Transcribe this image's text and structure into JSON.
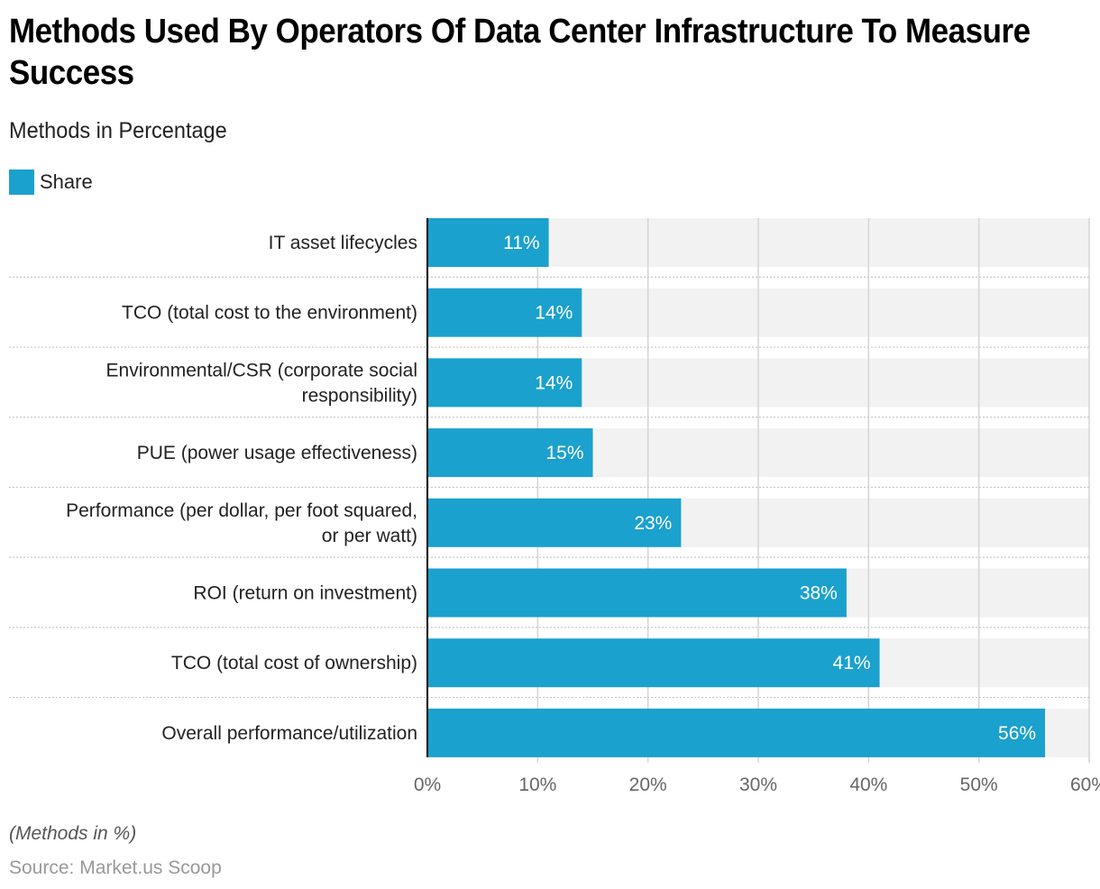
{
  "title": "Methods Used By Operators Of Data Center Infrastructure To Measure Success",
  "subtitle": "Methods in Percentage",
  "legend": {
    "label": "Share",
    "color": "#1ba1cd"
  },
  "note": "(Methods in %)",
  "source": "Source: Market.us Scoop",
  "chart_data": {
    "type": "bar",
    "orientation": "horizontal",
    "title": "Methods Used By Operators Of Data Center Infrastructure To Measure Success",
    "subtitle": "Methods in Percentage",
    "xlabel": "",
    "ylabel": "",
    "xlim": [
      0,
      60
    ],
    "xticks": [
      0,
      10,
      20,
      30,
      40,
      50,
      60
    ],
    "xtick_labels": [
      "0%",
      "10%",
      "20%",
      "30%",
      "40%",
      "50%",
      "60%"
    ],
    "grid": true,
    "legend": {
      "entries": [
        "Share"
      ],
      "placement": "top-left"
    },
    "categories": [
      [
        "IT asset lifecycles"
      ],
      [
        "TCO (total cost to the environment)"
      ],
      [
        "Environmental/CSR (corporate social",
        "responsibility)"
      ],
      [
        "PUE (power usage effectiveness)"
      ],
      [
        "Performance (per dollar, per foot squared,",
        "or per watt)"
      ],
      [
        "ROI (return on investment)"
      ],
      [
        "TCO (total cost of ownership)"
      ],
      [
        "Overall performance/utilization"
      ]
    ],
    "series": [
      {
        "name": "Share",
        "color": "#1ba1cd",
        "values": [
          11,
          14,
          14,
          15,
          23,
          38,
          41,
          56
        ],
        "labels": [
          "11%",
          "14%",
          "14%",
          "15%",
          "23%",
          "38%",
          "41%",
          "56%"
        ]
      }
    ],
    "colors": {
      "bar": "#1ba1cd",
      "track": "#f2f2f2",
      "grid": "#d4d4d4",
      "axis": "#000000",
      "tick_text": "#666666",
      "category_text": "#222222",
      "value_text": "#ffffff"
    }
  }
}
